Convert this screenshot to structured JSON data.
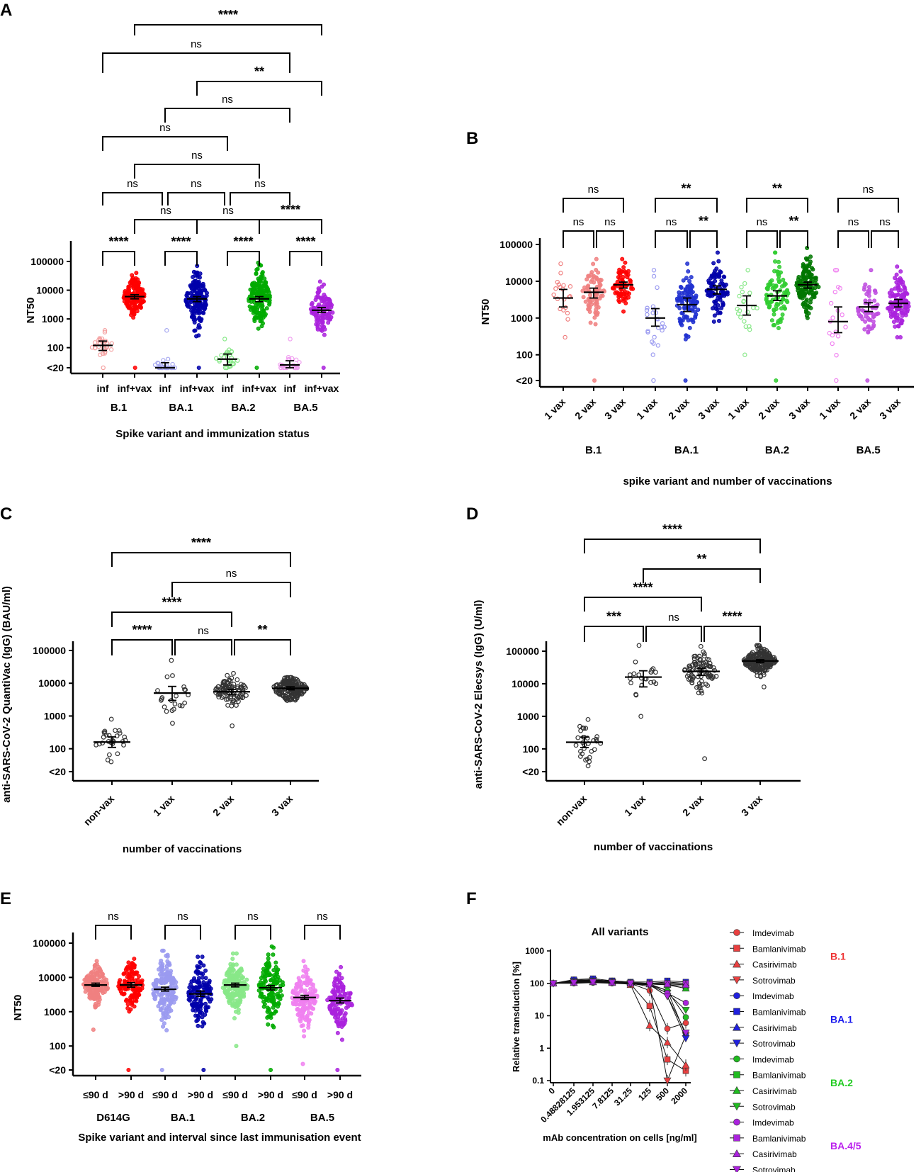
{
  "chart_data": [
    {
      "id": "A",
      "panel_label": "A",
      "type": "scatter",
      "y_scale": "log",
      "y_ticks": [
        "100000",
        "10000",
        "1000",
        "100",
        "<20"
      ],
      "ylabel": "NT50",
      "xlabel": "Spike variant and immunization status",
      "categories": [
        "inf",
        "inf+vax",
        "inf",
        "inf+vax",
        "inf",
        "inf+vax",
        "inf",
        "inf+vax"
      ],
      "groups": [
        "B.1",
        "BA.1",
        "BA.2",
        "BA.5"
      ],
      "colors": [
        "#f4a0a0",
        "#ff0000",
        "#a6a8f0",
        "#0000aa",
        "#88e888",
        "#00aa00",
        "#f0a0f0",
        "#aa22dd"
      ],
      "medians": [
        120,
        6000,
        20,
        5000,
        40,
        5000,
        25,
        2000
      ],
      "ci": [
        [
          80,
          170
        ],
        [
          5000,
          7000
        ],
        [
          15,
          30
        ],
        [
          4000,
          6000
        ],
        [
          25,
          60
        ],
        [
          4000,
          6000
        ],
        [
          18,
          35
        ],
        [
          1700,
          2500
        ]
      ],
      "n": [
        30,
        150,
        25,
        160,
        30,
        170,
        25,
        110
      ],
      "ranges": [
        [
          20,
          400
        ],
        [
          20,
          40000
        ],
        [
          20,
          400
        ],
        [
          20,
          70000
        ],
        [
          20,
          200
        ],
        [
          20,
          90000
        ],
        [
          20,
          200
        ],
        [
          20,
          20000
        ]
      ],
      "open_markers": [
        true,
        false,
        true,
        false,
        true,
        false,
        true,
        false
      ],
      "comparisons": [
        {
          "a": 0,
          "b": 1,
          "label": "****"
        },
        {
          "a": 2,
          "b": 3,
          "label": "****"
        },
        {
          "a": 4,
          "b": 5,
          "label": "****"
        },
        {
          "a": 6,
          "b": 7,
          "label": "****"
        },
        {
          "a": 1,
          "b": 3,
          "label": "ns"
        },
        {
          "a": 3,
          "b": 5,
          "label": "ns"
        },
        {
          "a": 5,
          "b": 7,
          "label": "****"
        },
        {
          "a": 0,
          "b": 2,
          "label": "ns"
        },
        {
          "a": 2,
          "b": 4,
          "label": "ns"
        },
        {
          "a": 4,
          "b": 6,
          "label": "ns"
        },
        {
          "a": 1,
          "b": 5,
          "label": "ns"
        },
        {
          "a": 0,
          "b": 4,
          "label": "ns"
        },
        {
          "a": 2,
          "b": 6,
          "label": "ns"
        },
        {
          "a": 3,
          "b": 7,
          "label": "**"
        },
        {
          "a": 0,
          "b": 6,
          "label": "ns"
        },
        {
          "a": 1,
          "b": 7,
          "label": "****"
        }
      ]
    },
    {
      "id": "B",
      "panel_label": "B",
      "type": "scatter",
      "y_scale": "log",
      "y_ticks": [
        "100000",
        "10000",
        "1000",
        "100",
        "<20"
      ],
      "ylabel": "NT50",
      "xlabel": "spike variant and number of vaccinations",
      "categories": [
        "1 vax",
        "2 vax",
        "3 vax",
        "1 vax",
        "2 vax",
        "3 vax",
        "1 vax",
        "2 vax",
        "3 vax",
        "1 vax",
        "2 vax",
        "3 vax"
      ],
      "groups": [
        "B.1",
        "BA.1",
        "BA.2",
        "BA.5"
      ],
      "colors": [
        "#f08080",
        "#f08080",
        "#ff0000",
        "#9a9af0",
        "#2030d0",
        "#0000aa",
        "#88e888",
        "#30cc30",
        "#007700",
        "#f080f0",
        "#c050e0",
        "#aa22dd"
      ],
      "medians": [
        3500,
        5000,
        8000,
        1000,
        2300,
        6000,
        2200,
        4000,
        8000,
        800,
        2000,
        2500
      ],
      "ci": [
        [
          2000,
          6000
        ],
        [
          3500,
          6500
        ],
        [
          6500,
          9500
        ],
        [
          600,
          1800
        ],
        [
          1500,
          3500
        ],
        [
          4500,
          7500
        ],
        [
          1200,
          4000
        ],
        [
          3000,
          5500
        ],
        [
          6500,
          9500
        ],
        [
          400,
          2000
        ],
        [
          1500,
          2600
        ],
        [
          2000,
          3200
        ]
      ],
      "n": [
        20,
        80,
        70,
        25,
        100,
        90,
        20,
        90,
        140,
        18,
        60,
        120
      ],
      "ranges": [
        [
          300,
          30000
        ],
        [
          20,
          40000
        ],
        [
          1500,
          40000
        ],
        [
          20,
          20000
        ],
        [
          20,
          30000
        ],
        [
          800,
          60000
        ],
        [
          100,
          20000
        ],
        [
          20,
          60000
        ],
        [
          1000,
          80000
        ],
        [
          20,
          20000
        ],
        [
          20,
          20000
        ],
        [
          300,
          25000
        ]
      ],
      "open_markers": [
        true,
        false,
        false,
        true,
        false,
        false,
        true,
        false,
        false,
        true,
        false,
        false
      ],
      "comparisons": [
        {
          "a": 0,
          "b": 1,
          "label": "ns"
        },
        {
          "a": 1,
          "b": 2,
          "label": "ns"
        },
        {
          "a": 0,
          "b": 2,
          "label": "ns"
        },
        {
          "a": 3,
          "b": 4,
          "label": "ns"
        },
        {
          "a": 4,
          "b": 5,
          "label": "**"
        },
        {
          "a": 3,
          "b": 5,
          "label": "**"
        },
        {
          "a": 6,
          "b": 7,
          "label": "ns"
        },
        {
          "a": 7,
          "b": 8,
          "label": "**"
        },
        {
          "a": 6,
          "b": 8,
          "label": "**"
        },
        {
          "a": 9,
          "b": 10,
          "label": "ns"
        },
        {
          "a": 10,
          "b": 11,
          "label": "ns"
        },
        {
          "a": 9,
          "b": 11,
          "label": "ns"
        }
      ]
    },
    {
      "id": "C",
      "panel_label": "C",
      "type": "scatter",
      "y_scale": "log",
      "y_ticks": [
        "100000",
        "10000",
        "1000",
        "100",
        "<20"
      ],
      "ylabel": "anti-SARS-CoV-2 QuantiVac (IgG) (BAU/ml)",
      "xlabel": "number of vaccinations",
      "categories": [
        "non-vax",
        "1 vax",
        "2 vax",
        "3 vax"
      ],
      "colors": [
        "#333333",
        "#333333",
        "#333333",
        "#333333"
      ],
      "medians": [
        160,
        5000,
        5500,
        7000
      ],
      "ci": [
        [
          110,
          230
        ],
        [
          3000,
          8000
        ],
        [
          4500,
          6500
        ],
        [
          6300,
          7800
        ]
      ],
      "n": [
        28,
        22,
        90,
        200
      ],
      "ranges": [
        [
          40,
          800
        ],
        [
          600,
          50000
        ],
        [
          500,
          20000
        ],
        [
          3000,
          15000
        ]
      ],
      "open_markers": [
        true,
        true,
        true,
        true
      ],
      "comparisons": [
        {
          "a": 0,
          "b": 1,
          "label": "****"
        },
        {
          "a": 1,
          "b": 2,
          "label": "ns"
        },
        {
          "a": 2,
          "b": 3,
          "label": "**"
        },
        {
          "a": 0,
          "b": 2,
          "label": "****"
        },
        {
          "a": 1,
          "b": 3,
          "label": "ns"
        },
        {
          "a": 0,
          "b": 3,
          "label": "****"
        }
      ]
    },
    {
      "id": "D",
      "panel_label": "D",
      "type": "scatter",
      "y_scale": "log",
      "y_ticks": [
        "100000",
        "10000",
        "1000",
        "100",
        "<20"
      ],
      "ylabel": "anti-SARS-CoV-2 Elecsys (IgG) (U/ml)",
      "xlabel": "number of vaccinations",
      "categories": [
        "non-vax",
        "1 vax",
        "2 vax",
        "3 vax"
      ],
      "colors": [
        "#333333",
        "#333333",
        "#333333",
        "#333333"
      ],
      "medians": [
        160,
        16000,
        24000,
        50000
      ],
      "ci": [
        [
          110,
          230
        ],
        [
          8000,
          25000
        ],
        [
          18000,
          30000
        ],
        [
          45000,
          55000
        ]
      ],
      "n": [
        30,
        22,
        90,
        220
      ],
      "ranges": [
        [
          30,
          800
        ],
        [
          1000,
          150000
        ],
        [
          50,
          140000
        ],
        [
          8000,
          150000
        ]
      ],
      "open_markers": [
        true,
        true,
        true,
        true
      ],
      "comparisons": [
        {
          "a": 0,
          "b": 1,
          "label": "***"
        },
        {
          "a": 1,
          "b": 2,
          "label": "ns"
        },
        {
          "a": 2,
          "b": 3,
          "label": "****"
        },
        {
          "a": 0,
          "b": 2,
          "label": "****"
        },
        {
          "a": 1,
          "b": 3,
          "label": "**"
        },
        {
          "a": 0,
          "b": 3,
          "label": "****"
        }
      ]
    },
    {
      "id": "E",
      "panel_label": "E",
      "type": "scatter",
      "y_scale": "log",
      "y_ticks": [
        "100000",
        "10000",
        "1000",
        "100",
        "<20"
      ],
      "ylabel": "NT50",
      "xlabel": "Spike variant and interval since last immunisation event",
      "categories": [
        "≤90 d",
        ">90 d",
        "≤90 d",
        ">90 d",
        "≤90 d",
        ">90 d",
        "≤90 d",
        ">90 d"
      ],
      "groups": [
        "D614G",
        "BA.1",
        "BA.2",
        "BA.5"
      ],
      "colors": [
        "#f08080",
        "#ff0000",
        "#9a9af0",
        "#0000aa",
        "#88e888",
        "#00aa00",
        "#f080f0",
        "#aa22dd"
      ],
      "medians": [
        6000,
        6000,
        4500,
        3300,
        6000,
        5000,
        2600,
        2100
      ],
      "ci": [
        [
          5500,
          6800
        ],
        [
          5200,
          7000
        ],
        [
          4000,
          5200
        ],
        [
          2800,
          4000
        ],
        [
          5300,
          6800
        ],
        [
          4300,
          5800
        ],
        [
          2300,
          3000
        ],
        [
          1800,
          2500
        ]
      ],
      "n": [
        170,
        130,
        170,
        140,
        180,
        140,
        170,
        130
      ],
      "ranges": [
        [
          300,
          30000
        ],
        [
          20,
          35000
        ],
        [
          20,
          60000
        ],
        [
          20,
          40000
        ],
        [
          100,
          50000
        ],
        [
          20,
          80000
        ],
        [
          30,
          30000
        ],
        [
          20,
          20000
        ]
      ],
      "open_markers": [
        false,
        false,
        false,
        false,
        false,
        false,
        false,
        false
      ],
      "comparisons": [
        {
          "a": 0,
          "b": 1,
          "label": "ns"
        },
        {
          "a": 2,
          "b": 3,
          "label": "ns"
        },
        {
          "a": 4,
          "b": 5,
          "label": "ns"
        },
        {
          "a": 6,
          "b": 7,
          "label": "ns"
        }
      ]
    },
    {
      "id": "F",
      "panel_label": "F",
      "type": "line",
      "title": "All variants",
      "y_scale": "log",
      "y_ticks": [
        "1000",
        "100",
        "10",
        "1",
        "0.1"
      ],
      "ylabel": "Relative transduction [%]",
      "xlabel": "mAb concentration on cells [ng/ml]",
      "x": [
        "0",
        "0.48828125",
        "1.953125",
        "7.8125",
        "31.25",
        "125",
        "500",
        "2000"
      ],
      "series": [
        {
          "name": "Imdevimab",
          "group": "B.1",
          "color": "#e84040",
          "marker": "circle",
          "values": [
            100,
            110,
            120,
            110,
            100,
            60,
            4,
            6
          ]
        },
        {
          "name": "Bamlanivimab",
          "group": "B.1",
          "color": "#e84040",
          "marker": "square",
          "values": [
            100,
            115,
            125,
            120,
            95,
            20,
            0.45,
            0.2
          ]
        },
        {
          "name": "Casirivimab",
          "group": "B.1",
          "color": "#e84040",
          "marker": "tri-up",
          "values": [
            100,
            120,
            130,
            115,
            90,
            5,
            1.5,
            0.3
          ]
        },
        {
          "name": "Sotrovimab",
          "group": "B.1",
          "color": "#e84040",
          "marker": "tri-down",
          "values": [
            100,
            120,
            125,
            110,
            100,
            80,
            0.1,
            2.5
          ]
        },
        {
          "name": "Imdevimab",
          "group": "BA.1",
          "color": "#2020dd",
          "marker": "circle",
          "values": [
            100,
            105,
            110,
            105,
            100,
            95,
            60,
            2.5
          ]
        },
        {
          "name": "Bamlanivimab",
          "group": "BA.1",
          "color": "#2020dd",
          "marker": "square",
          "values": [
            100,
            130,
            140,
            120,
            110,
            110,
            120,
            110
          ]
        },
        {
          "name": "Casirivimab",
          "group": "BA.1",
          "color": "#2020dd",
          "marker": "tri-up",
          "values": [
            100,
            125,
            130,
            115,
            105,
            100,
            110,
            100
          ]
        },
        {
          "name": "Sotrovimab",
          "group": "BA.1",
          "color": "#2020dd",
          "marker": "tri-down",
          "values": [
            100,
            115,
            120,
            110,
            100,
            90,
            40,
            2
          ]
        },
        {
          "name": "Imdevimab",
          "group": "BA.2",
          "color": "#20bb20",
          "marker": "circle",
          "values": [
            100,
            100,
            105,
            100,
            95,
            90,
            60,
            9
          ]
        },
        {
          "name": "Bamlanivimab",
          "group": "BA.2",
          "color": "#20bb20",
          "marker": "square",
          "values": [
            100,
            110,
            115,
            110,
            100,
            95,
            90,
            80
          ]
        },
        {
          "name": "Casirivimab",
          "group": "BA.2",
          "color": "#20bb20",
          "marker": "tri-up",
          "values": [
            100,
            105,
            110,
            105,
            100,
            95,
            90,
            70
          ]
        },
        {
          "name": "Sotrovimab",
          "group": "BA.2",
          "color": "#20bb20",
          "marker": "tri-down",
          "values": [
            100,
            105,
            110,
            105,
            95,
            90,
            50,
            15
          ]
        },
        {
          "name": "Imdevimab",
          "group": "BA.4/5",
          "color": "#aa22dd",
          "marker": "circle",
          "values": [
            100,
            105,
            110,
            105,
            100,
            90,
            50,
            25
          ]
        },
        {
          "name": "Bamlanivimab",
          "group": "BA.4/5",
          "color": "#aa22dd",
          "marker": "square",
          "values": [
            100,
            110,
            115,
            110,
            105,
            100,
            100,
            100
          ]
        },
        {
          "name": "Casirivimab",
          "group": "BA.4/5",
          "color": "#aa22dd",
          "marker": "tri-up",
          "values": [
            100,
            105,
            110,
            105,
            100,
            95,
            95,
            90
          ]
        },
        {
          "name": "Sotrovimab",
          "group": "BA.4/5",
          "color": "#aa22dd",
          "marker": "tri-down",
          "values": [
            100,
            105,
            110,
            105,
            100,
            90,
            40,
            3
          ]
        }
      ],
      "legend_groups": [
        {
          "label": "B.1",
          "color": "#ee3333"
        },
        {
          "label": "BA.1",
          "color": "#1a1aee"
        },
        {
          "label": "BA.2",
          "color": "#22cc22"
        },
        {
          "label": "BA.4/5",
          "color": "#bb22ee"
        }
      ]
    }
  ]
}
